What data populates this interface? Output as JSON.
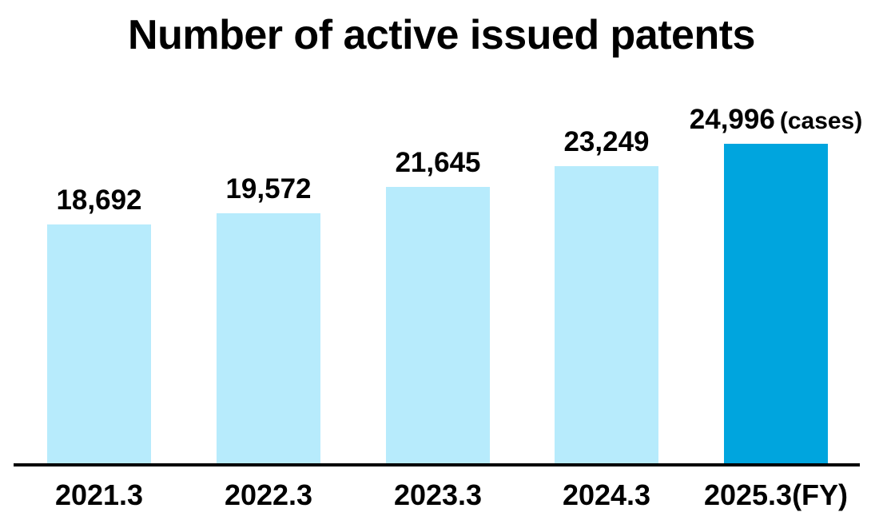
{
  "chart_data": {
    "type": "bar",
    "title": "Number of active issued patents",
    "unit_label": "(cases)",
    "categories": [
      "2021.3",
      "2022.3",
      "2023.3",
      "2024.3",
      "2025.3(FY)"
    ],
    "values": [
      18692,
      19572,
      21645,
      23249,
      24996
    ],
    "value_labels": [
      "18,692",
      "19,572",
      "21,645",
      "23,249",
      "24,996"
    ],
    "highlight_index": 4,
    "ylim": [
      0,
      25000
    ],
    "xlabel": "",
    "ylabel": "",
    "grid": false,
    "legend": false,
    "colors": {
      "bar_default": "#B7EBFC",
      "bar_highlight": "#00A5DE",
      "axis": "#000000",
      "text": "#000000"
    }
  }
}
